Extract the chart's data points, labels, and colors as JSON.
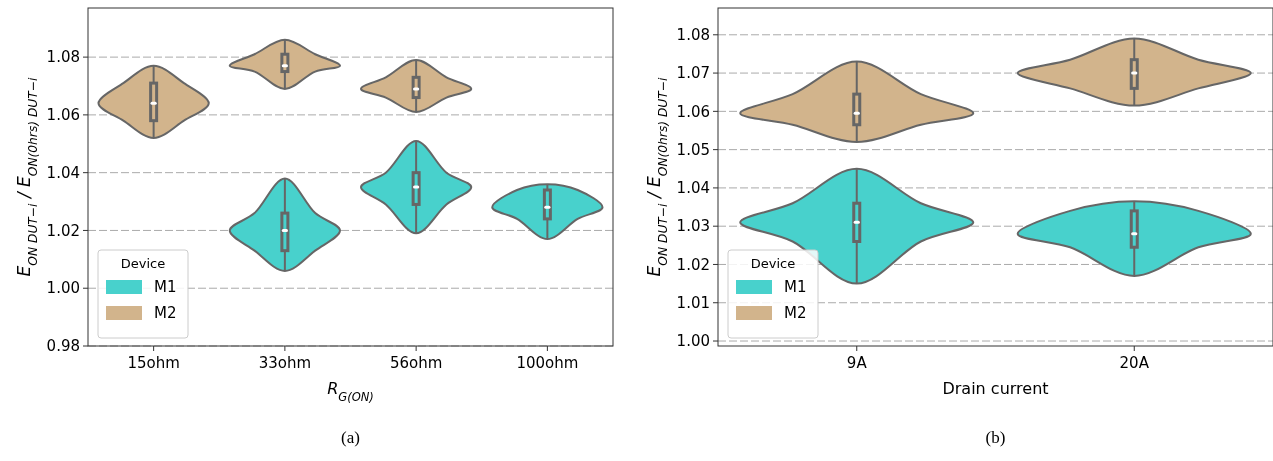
{
  "chart_data": [
    {
      "type": "box",
      "categories": [
        "15ohm",
        "33ohm",
        "56ohm",
        "100ohm"
      ],
      "xlabel": "R$_{G(ON)}$",
      "ylabel": "E$_{ON DUT−i}$ / E$_{ON(0hrs) DUT−i}$",
      "ylim": [
        0.98,
        1.097
      ],
      "yticks": [
        0.98,
        {
          "value": 1.0,
          "label": "1.00"
        },
        1.02,
        1.04,
        1.06,
        1.08
      ],
      "grid": "y",
      "legend": "bottom left",
      "legend_title": "Device",
      "annotations": [
        "(a)"
      ],
      "series": [
        {
          "name": "M1",
          "color": "#48d1cc",
          "boxes": [
            null,
            {
              "low": 1.006,
              "q1": 1.013,
              "median": 1.02,
              "q3": 1.026,
              "high": 1.038
            },
            {
              "low": 1.019,
              "q1": 1.029,
              "median": 1.035,
              "q3": 1.04,
              "high": 1.051
            },
            {
              "low": 1.017,
              "q1": 1.024,
              "median": 1.028,
              "q3": 1.034,
              "high": 1.036
            }
          ]
        },
        {
          "name": "M2",
          "color": "#d2b48c",
          "boxes": [
            {
              "low": 1.052,
              "q1": 1.058,
              "median": 1.064,
              "q3": 1.071,
              "high": 1.077
            },
            {
              "low": 1.069,
              "q1": 1.075,
              "median": 1.077,
              "q3": 1.081,
              "high": 1.086
            },
            {
              "low": 1.061,
              "q1": 1.066,
              "median": 1.069,
              "q3": 1.073,
              "high": 1.079
            },
            null
          ]
        }
      ]
    },
    {
      "type": "box",
      "categories": [
        "9A",
        "20A"
      ],
      "xlabel": "Drain current",
      "ylabel": "E$_{ON DUT−i}$ / E$_{ON(0hrs) DUT−i}$",
      "ylim": [
        0.9987,
        1.087
      ],
      "yticks": [
        {
          "value": 1.0,
          "label": "1.00"
        },
        1.01,
        1.02,
        1.03,
        1.04,
        1.05,
        1.06,
        1.07,
        1.08
      ],
      "grid": "y",
      "legend": "bottom left",
      "legend_title": "Device",
      "annotations": [
        "(b)"
      ],
      "series": [
        {
          "name": "M1",
          "color": "#48d1cc",
          "boxes": [
            {
              "low": 1.015,
              "q1": 1.026,
              "median": 1.031,
              "q3": 1.036,
              "high": 1.045
            },
            {
              "low": 1.017,
              "q1": 1.0245,
              "median": 1.028,
              "q3": 1.034,
              "high": 1.0365
            }
          ]
        },
        {
          "name": "M2",
          "color": "#d2b48c",
          "boxes": [
            {
              "low": 1.052,
              "q1": 1.0565,
              "median": 1.0595,
              "q3": 1.0645,
              "high": 1.073
            },
            {
              "low": 1.0615,
              "q1": 1.066,
              "median": 1.07,
              "q3": 1.0735,
              "high": 1.079
            }
          ]
        }
      ]
    }
  ]
}
